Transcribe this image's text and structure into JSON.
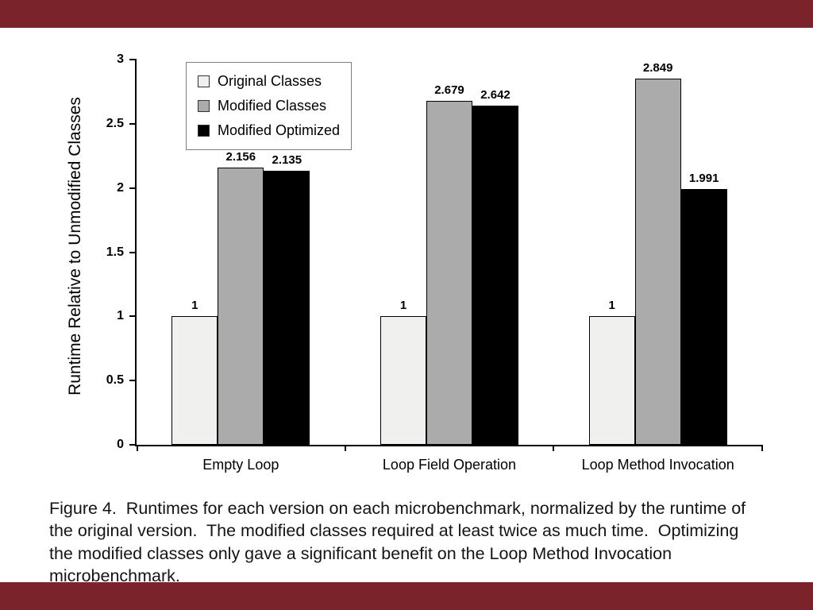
{
  "slide": {
    "accent_color": "#7a232b",
    "background": "#ffffff"
  },
  "chart_data": {
    "type": "bar",
    "title": "",
    "xlabel": "",
    "ylabel": "Runtime Relative to Unmodified Classes",
    "ylim": [
      0,
      3
    ],
    "yticks": [
      0,
      0.5,
      1,
      1.5,
      2,
      2.5,
      3
    ],
    "grid": false,
    "legend_position": "top-left",
    "categories": [
      "Empty Loop",
      "Loop Field Operation",
      "Loop Method Invocation"
    ],
    "series": [
      {
        "name": "Original Classes",
        "color": "#f0f0ee",
        "values": [
          1,
          1,
          1
        ]
      },
      {
        "name": "Modified Classes",
        "color": "#ababab",
        "values": [
          2.156,
          2.679,
          2.849
        ]
      },
      {
        "name": "Modified Optimized",
        "color": "#000000",
        "values": [
          2.135,
          2.642,
          1.991
        ]
      }
    ]
  },
  "caption": "Figure 4.  Runtimes for each version on each microbenchmark, normalized by the runtime of the original version.  The modified classes required at least twice as much time.  Optimizing the modified classes only gave a significant benefit on the Loop Method Invocation microbenchmark."
}
